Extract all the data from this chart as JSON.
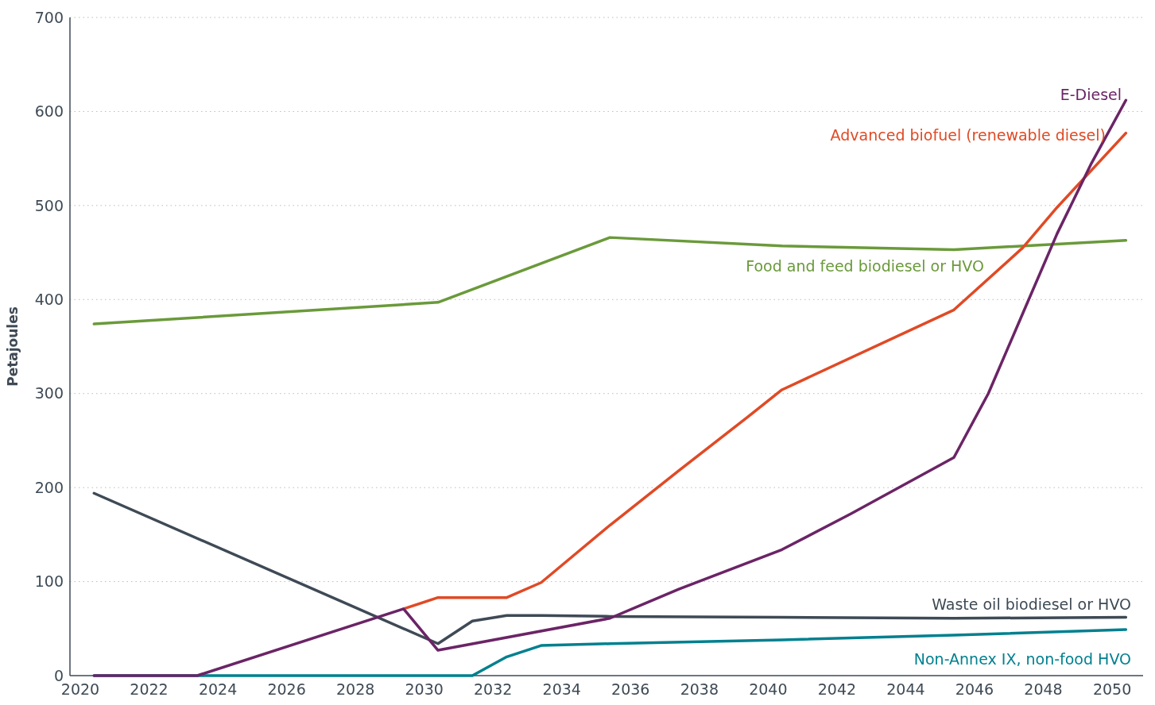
{
  "chart_data": {
    "type": "line",
    "ylabel": "Petajoules",
    "xlim": [
      2019.7,
      2050.9
    ],
    "xticks": [
      2020,
      2022,
      2024,
      2026,
      2028,
      2030,
      2032,
      2034,
      2036,
      2038,
      2040,
      2042,
      2044,
      2046,
      2048,
      2050
    ],
    "ylim": [
      0,
      700
    ],
    "yticks": [
      0,
      100,
      200,
      300,
      400,
      500,
      600,
      700
    ],
    "grid": "y",
    "legend": false,
    "line_style": "solid",
    "marker": "none",
    "series": [
      {
        "name": "Food and feed biodiesel or HVO",
        "color": "#6a9a3a",
        "x": [
          2020.4,
          2030.4,
          2035.4,
          2040.4,
          2045.4,
          2050.4
        ],
        "values": [
          374,
          397,
          466,
          457,
          453,
          463
        ]
      },
      {
        "name": "Waste oil biodiesel or HVO",
        "color": "#3e4a55",
        "x": [
          2020.4,
          2030.4,
          2031.4,
          2032.4,
          2033.4,
          2035.4,
          2040.4,
          2045.4,
          2050.4
        ],
        "values": [
          194,
          34,
          58,
          64,
          64,
          63,
          62,
          61,
          62
        ]
      },
      {
        "name": "Non-Annex IX, non-food HVO",
        "color": "#00808f",
        "x": [
          2020.4,
          2031.4,
          2032.4,
          2033.4,
          2035.4,
          2040.4,
          2045.4,
          2050.4
        ],
        "values": [
          0,
          0,
          20,
          32,
          34,
          38,
          43,
          49
        ]
      },
      {
        "name": "Advanced biofuel (renewable diesel)",
        "color": "#e04a25",
        "x": [
          2029.4,
          2030.4,
          2032.4,
          2033.4,
          2035.4,
          2037.4,
          2039.4,
          2040.4,
          2045.4,
          2047.4,
          2048.4,
          2050.4
        ],
        "values": [
          71,
          83,
          83,
          99,
          160,
          218,
          275,
          304,
          389,
          455,
          498,
          577
        ]
      },
      {
        "name": "E-Diesel",
        "color": "#6b2466",
        "x": [
          2020.4,
          2023.4,
          2029.4,
          2030.4,
          2035.4,
          2037.4,
          2040.4,
          2042.4,
          2045.4,
          2046.4,
          2047.4,
          2048.4,
          2049.4,
          2050.4
        ],
        "values": [
          0,
          0,
          71,
          27,
          61,
          92,
          134,
          172,
          232,
          300,
          385,
          470,
          545,
          612
        ]
      }
    ]
  }
}
